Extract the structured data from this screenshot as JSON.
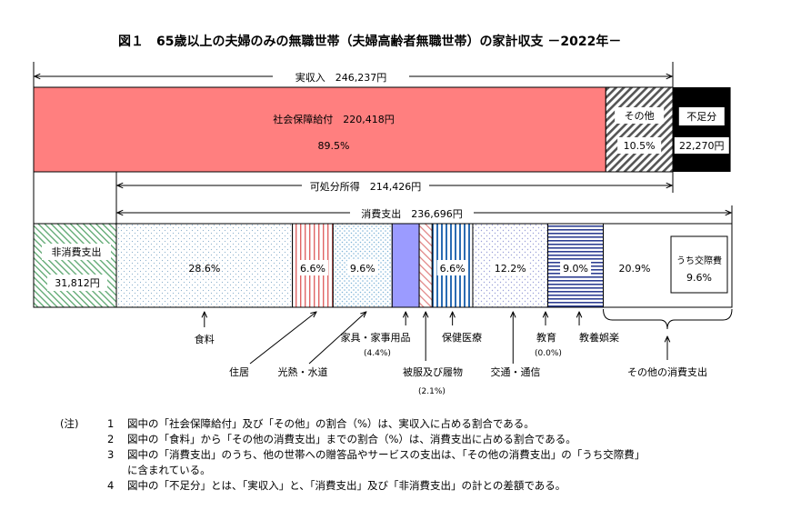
{
  "chart_data": {
    "type": "bar",
    "title": "図１　65歳以上の夫婦のみの無職世帯（夫婦高齢者無職世帯）の家計収支 －2022年－",
    "income": {
      "label": "実収入",
      "value_label": "246,237円",
      "value": 246237,
      "segments": [
        {
          "name": "社会保障給付",
          "value_label": "220,418円",
          "value": 220418,
          "share_label": "89.5%",
          "share": 89.5
        },
        {
          "name": "その他",
          "share_label": "10.5%",
          "share": 10.5
        }
      ],
      "deficit": {
        "name": "不足分",
        "value_label": "22,270円",
        "value": 22270
      }
    },
    "disposable_income": {
      "label": "可処分所得",
      "value_label": "214,426円",
      "value": 214426
    },
    "consumption": {
      "label": "消費支出",
      "value_label": "236,696円",
      "value": 236696,
      "categories": [
        {
          "name": "食料",
          "share": 28.6,
          "share_label": "28.6%"
        },
        {
          "name": "住居",
          "share": 6.6,
          "share_label": "6.6%"
        },
        {
          "name": "光熱・水道",
          "share": 9.6,
          "share_label": "9.6%"
        },
        {
          "name": "家具・家事用品",
          "share": 4.4,
          "share_label": "(4.4%)"
        },
        {
          "name": "被服及び履物",
          "share": 2.1,
          "share_label": "(2.1%)"
        },
        {
          "name": "保健医療",
          "share": 6.6,
          "share_label": "6.6%"
        },
        {
          "name": "交通・通信",
          "share": 12.2,
          "share_label": "12.2%"
        },
        {
          "name": "教育",
          "share": 0.0,
          "share_label": "(0.0%)"
        },
        {
          "name": "教養娯楽",
          "share": 9.0,
          "share_label": "9.0%"
        },
        {
          "name": "その他の消費支出",
          "share": 20.9,
          "share_label": "20.9%"
        }
      ],
      "sub_item": {
        "name": "うち交際費",
        "share": 9.6,
        "share_label": "9.6%"
      }
    },
    "non_consumption": {
      "label": "非消費支出",
      "value_label": "31,812円",
      "value": 31812
    }
  },
  "notes": {
    "prefix": "(注)",
    "items": [
      {
        "num": "1",
        "text": "図中の「社会保障給付」及び「その他」の割合（%）は、実収入に占める割合である。"
      },
      {
        "num": "2",
        "text": "図中の「食料」から「その他の消費支出」までの割合（%）は、消費支出に占める割合である。"
      },
      {
        "num": "3",
        "text": "図中の「消費支出」のうち、他の世帯への贈答品やサービスの支出は、「その他の消費支出」の「うち交際費」"
      },
      {
        "num": "",
        "text": "に含まれている。"
      },
      {
        "num": "4",
        "text": "図中の「不足分」とは、「実収入」と、「消費支出」及び「非消費支出」の計との差額である。"
      }
    ]
  }
}
